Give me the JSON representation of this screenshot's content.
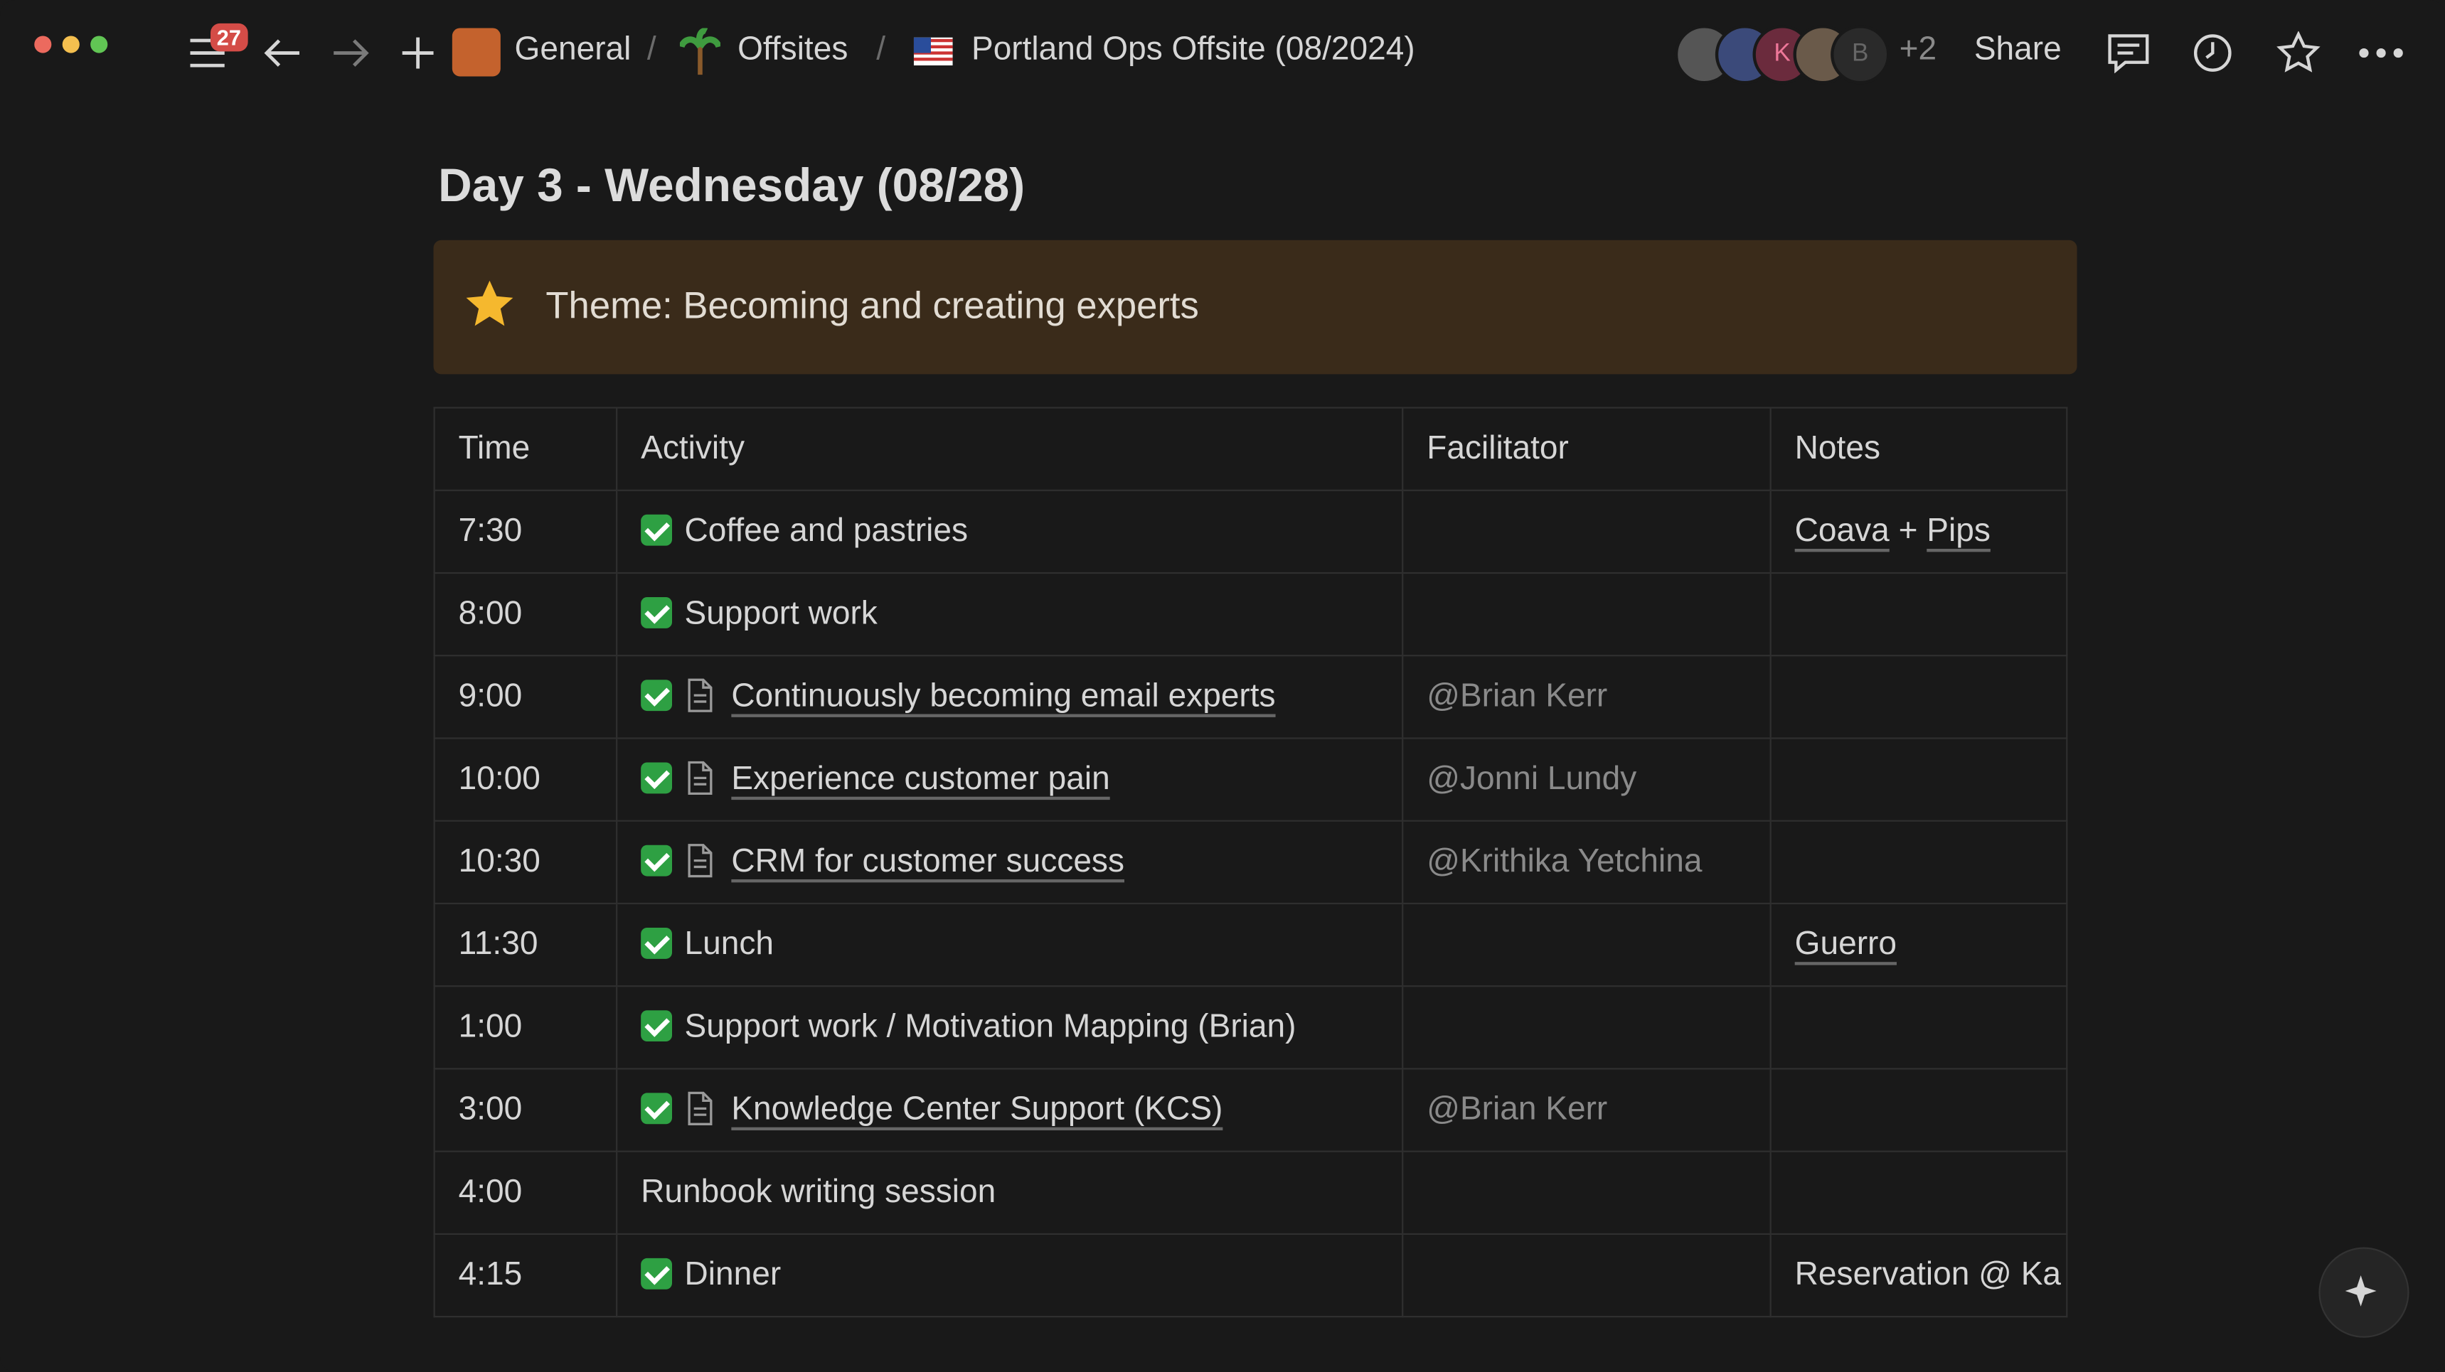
{
  "topbar": {
    "notifications": "27",
    "breadcrumb": [
      "General",
      "Offsites",
      "Portland Ops Offsite (08/2024)"
    ],
    "avatars": [
      "K",
      "B"
    ],
    "more_people": "+2",
    "share": "Share"
  },
  "page": {
    "title": "Day 3 - Wednesday (08/28)",
    "callout": "Theme: Becoming and creating experts"
  },
  "table": {
    "headers": [
      "Time",
      "Activity",
      "Facilitator",
      "Notes"
    ],
    "rows": [
      {
        "time": "7:30",
        "done": true,
        "doc": false,
        "activity": "Coffee and pastries",
        "facilitator": "",
        "notes": [
          {
            "text": "Coava",
            "link": true
          },
          {
            "text": " + ",
            "link": false
          },
          {
            "text": "Pips",
            "link": true
          }
        ]
      },
      {
        "time": "8:00",
        "done": true,
        "doc": false,
        "activity": "Support work",
        "facilitator": "",
        "notes": []
      },
      {
        "time": "9:00",
        "done": true,
        "doc": true,
        "activity": "Continuously becoming email experts",
        "facilitator": "@Brian Kerr",
        "notes": []
      },
      {
        "time": "10:00",
        "done": true,
        "doc": true,
        "activity": "Experience customer pain",
        "facilitator": "@Jonni Lundy",
        "notes": []
      },
      {
        "time": "10:30",
        "done": true,
        "doc": true,
        "activity": "CRM for customer success",
        "facilitator": "@Krithika Yetchina",
        "notes": []
      },
      {
        "time": "11:30",
        "done": true,
        "doc": false,
        "activity": "Lunch",
        "facilitator": "",
        "notes": [
          {
            "text": "Guerro",
            "link": true
          }
        ]
      },
      {
        "time": "1:00",
        "done": true,
        "doc": false,
        "activity": "Support work / Motivation Mapping (Brian)",
        "facilitator": "",
        "notes": []
      },
      {
        "time": "3:00",
        "done": true,
        "doc": true,
        "activity": "Knowledge Center Support (KCS)",
        "facilitator": "@Brian Kerr",
        "notes": []
      },
      {
        "time": "4:00",
        "done": false,
        "doc": false,
        "activity": "Runbook writing session",
        "facilitator": "",
        "notes": []
      },
      {
        "time": "4:15",
        "done": true,
        "doc": false,
        "activity": "Dinner",
        "facilitator": "",
        "notes": [
          {
            "text": "Reservation @ Ka",
            "link": false
          }
        ]
      }
    ]
  }
}
